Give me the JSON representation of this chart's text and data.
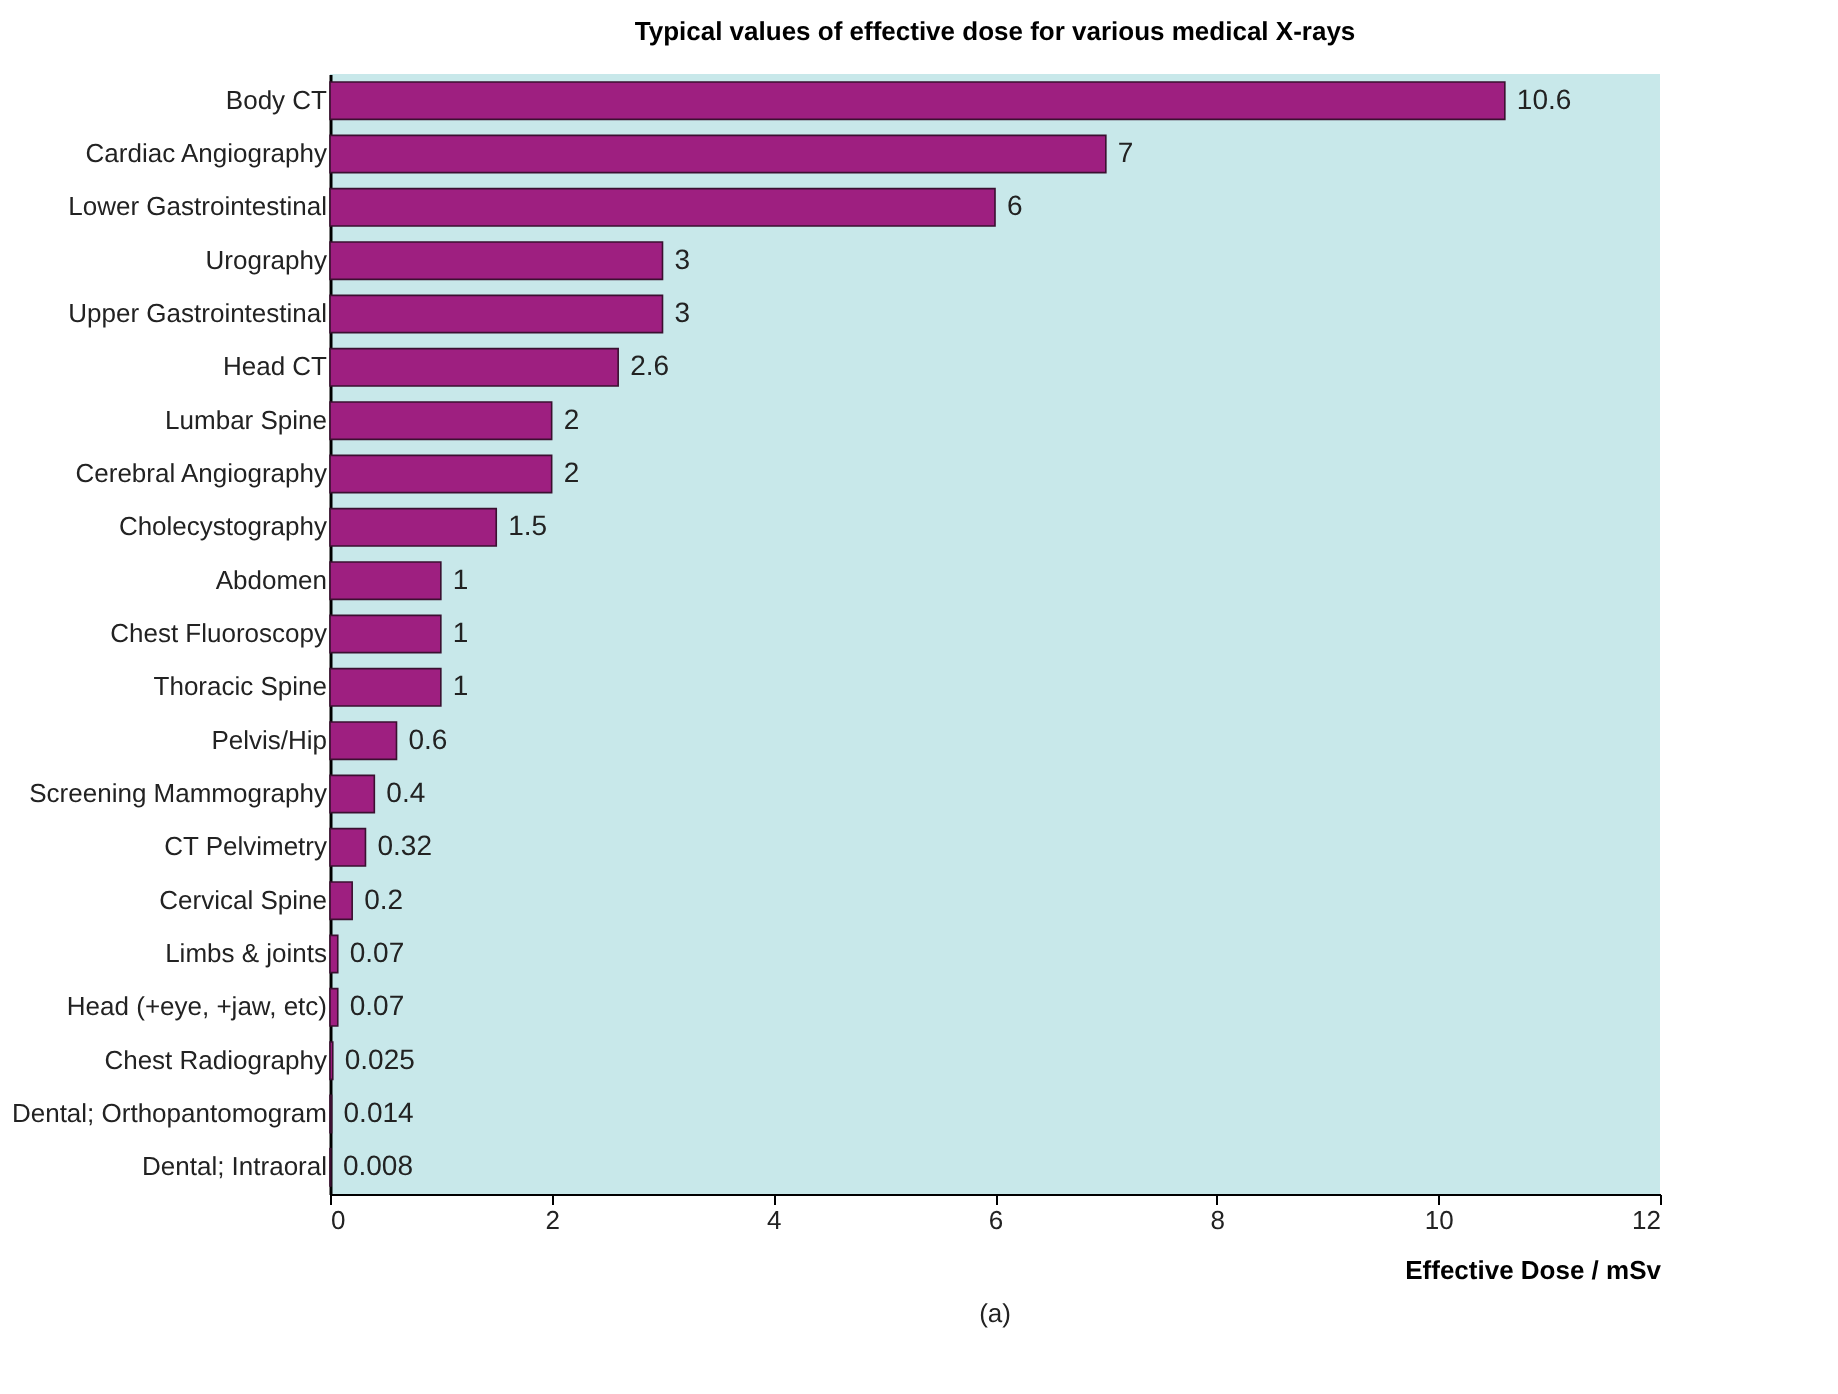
{
  "chart_data": {
    "type": "bar",
    "orientation": "horizontal",
    "title": "Typical values of effective dose for various medical X-rays",
    "xlabel": "Effective Dose / mSv",
    "categories": [
      "Body CT",
      "Cardiac Angiography",
      "Lower Gastrointestinal",
      "Urography",
      "Upper Gastrointestinal",
      "Head CT",
      "Lumbar Spine",
      "Cerebral Angiography",
      "Cholecystography",
      "Abdomen",
      "Chest Fluoroscopy",
      "Thoracic Spine",
      "Pelvis/Hip",
      "Screening Mammography",
      "CT Pelvimetry",
      "Cervical Spine",
      "Limbs & joints",
      "Head (+eye, +jaw, etc)",
      "Chest Radiography",
      "Dental; Orthopantomogram",
      "Dental; Intraoral"
    ],
    "values": [
      10.6,
      7,
      6,
      3,
      3,
      2.6,
      2,
      2,
      1.5,
      1,
      1,
      1,
      0.6,
      0.4,
      0.32,
      0.2,
      0.07,
      0.07,
      0.025,
      0.014,
      0.008
    ],
    "color": "#9e1f80",
    "data_labels": true,
    "xlim": [
      0,
      12
    ],
    "xticks": [
      0,
      2,
      4,
      6,
      8,
      10,
      12
    ],
    "grid": false,
    "annotations": [
      "(a)"
    ]
  }
}
